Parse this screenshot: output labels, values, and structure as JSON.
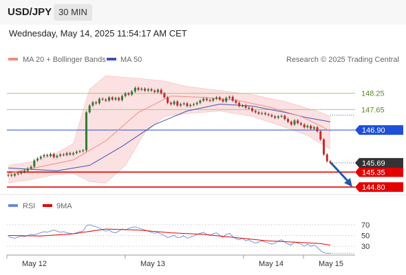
{
  "header": {
    "pair": "USD/JPY",
    "timeframe": "30 MIN"
  },
  "timestamp": "Wednesday, May 14, 2025 11:54:17 AM CET",
  "legend": {
    "ma20": "MA 20 + Bollinger Bands",
    "ma50": "MA 50",
    "rsi": "RSI",
    "rsi_ma": "9MA"
  },
  "credit": "Research © 2025 Trading Central",
  "colors": {
    "up": "#2e7d32",
    "down": "#c62828",
    "ma20": "#f28b82",
    "ma50": "#3f51b5",
    "band": "#f8c8c8",
    "resistance": "#a5c77f",
    "pivot": "#1e4fd8",
    "support": "#e30000",
    "last": "#333333",
    "arrow": "#1f5aa8",
    "rsi": "#6688dd",
    "rsi_ma": "#e30000"
  },
  "chart_data": {
    "type": "candlestick",
    "x_labels": [
      "May 12",
      "May 13",
      "May 14",
      "May 15"
    ],
    "ylim": [
      144.6,
      148.9
    ],
    "levels": [
      {
        "value": 148.25,
        "label": "148.25",
        "kind": "resistance"
      },
      {
        "value": 147.65,
        "label": "147.65",
        "kind": "resistance"
      },
      {
        "value": 146.9,
        "label": "146.90",
        "kind": "pivot"
      },
      {
        "value": 145.35,
        "label": "145.35",
        "kind": "support"
      },
      {
        "value": 144.8,
        "label": "144.80",
        "kind": "support"
      }
    ],
    "last_price": {
      "value": 145.69,
      "label": "145.69"
    },
    "close_path": [
      145.25,
      145.22,
      145.28,
      145.3,
      145.35,
      145.4,
      145.48,
      145.55,
      145.78,
      145.85,
      145.92,
      145.98,
      145.94,
      146.02,
      145.9,
      145.95,
      146.0,
      145.98,
      146.05,
      146.0,
      146.05,
      146.1,
      146.12,
      146.15,
      147.55,
      147.8,
      147.92,
      147.88,
      148.05,
      148.02,
      147.98,
      148.1,
      148.02,
      148.08,
      148.0,
      148.15,
      148.25,
      148.2,
      148.32,
      148.45,
      148.38,
      148.42,
      148.35,
      148.4,
      148.35,
      148.3,
      148.38,
      148.25,
      148.1,
      147.9,
      147.85,
      147.95,
      147.8,
      147.85,
      147.88,
      147.78,
      147.82,
      147.85,
      147.9,
      147.98,
      148.05,
      148.0,
      147.98,
      148.05,
      148.1,
      148.02,
      147.95,
      148.08,
      148.12,
      147.98,
      147.9,
      147.78,
      147.8,
      147.72,
      147.7,
      147.6,
      147.55,
      147.5,
      147.52,
      147.48,
      147.45,
      147.4,
      147.35,
      147.4,
      147.42,
      147.3,
      147.2,
      147.1,
      147.25,
      147.15,
      147.1,
      147.0,
      147.05,
      146.95,
      147.0,
      146.85,
      146.55,
      146.0,
      145.75,
      145.69
    ],
    "ma20": [
      [
        0,
        145.3
      ],
      [
        10,
        145.55
      ],
      [
        20,
        145.8
      ],
      [
        30,
        146.5
      ],
      [
        40,
        147.55
      ],
      [
        50,
        148.15
      ],
      [
        60,
        148.1
      ],
      [
        70,
        148.0
      ],
      [
        80,
        147.75
      ],
      [
        90,
        147.4
      ],
      [
        96,
        147.05
      ],
      [
        99,
        146.85
      ]
    ],
    "bb_upper": [
      [
        0,
        145.6
      ],
      [
        8,
        145.75
      ],
      [
        14,
        146.0
      ],
      [
        20,
        146.4
      ],
      [
        25,
        148.4
      ],
      [
        30,
        148.9
      ],
      [
        40,
        148.8
      ],
      [
        48,
        148.7
      ],
      [
        55,
        148.5
      ],
      [
        65,
        148.35
      ],
      [
        75,
        148.2
      ],
      [
        85,
        147.95
      ],
      [
        92,
        147.7
      ],
      [
        96,
        147.55
      ],
      [
        99,
        147.4
      ]
    ],
    "bb_lower": [
      [
        0,
        144.95
      ],
      [
        8,
        145.1
      ],
      [
        14,
        145.25
      ],
      [
        20,
        145.3
      ],
      [
        25,
        145.0
      ],
      [
        30,
        144.95
      ],
      [
        36,
        145.6
      ],
      [
        42,
        146.8
      ],
      [
        48,
        147.4
      ],
      [
        55,
        147.5
      ],
      [
        65,
        147.6
      ],
      [
        75,
        147.4
      ],
      [
        85,
        147.0
      ],
      [
        92,
        146.7
      ],
      [
        96,
        146.4
      ],
      [
        99,
        146.2
      ]
    ],
    "ma50": [
      [
        0,
        145.5
      ],
      [
        15,
        145.4
      ],
      [
        25,
        145.6
      ],
      [
        35,
        146.3
      ],
      [
        45,
        147.1
      ],
      [
        55,
        147.6
      ],
      [
        65,
        147.85
      ],
      [
        75,
        147.78
      ],
      [
        85,
        147.55
      ],
      [
        92,
        147.35
      ],
      [
        99,
        147.2
      ]
    ],
    "rsi_ylim": [
      15,
      85
    ],
    "rsi_ticks": [
      70,
      50,
      30
    ],
    "rsi": [
      48,
      46,
      45,
      47,
      49,
      48,
      50,
      52,
      51,
      53,
      55,
      57,
      56,
      58,
      60,
      58,
      56,
      57,
      55,
      54,
      53,
      55,
      57,
      58,
      68,
      70,
      68,
      66,
      64,
      60,
      58,
      60,
      56,
      55,
      58,
      62,
      60,
      63,
      65,
      66,
      64,
      62,
      60,
      58,
      56,
      54,
      56,
      52,
      50,
      46,
      48,
      50,
      46,
      47,
      49,
      45,
      47,
      49,
      52,
      54,
      56,
      52,
      50,
      53,
      55,
      50,
      46,
      52,
      54,
      48,
      44,
      42,
      45,
      40,
      42,
      38,
      36,
      38,
      40,
      38,
      36,
      34,
      36,
      40,
      42,
      38,
      34,
      32,
      38,
      36,
      34,
      30,
      34,
      30,
      32,
      28,
      22,
      18,
      17,
      17
    ],
    "rsi_ma": [
      [
        0,
        50
      ],
      [
        10,
        49
      ],
      [
        20,
        53
      ],
      [
        30,
        62
      ],
      [
        40,
        60
      ],
      [
        50,
        55
      ],
      [
        60,
        52
      ],
      [
        70,
        46
      ],
      [
        80,
        40
      ],
      [
        90,
        37
      ],
      [
        96,
        35
      ],
      [
        99,
        32
      ]
    ]
  }
}
